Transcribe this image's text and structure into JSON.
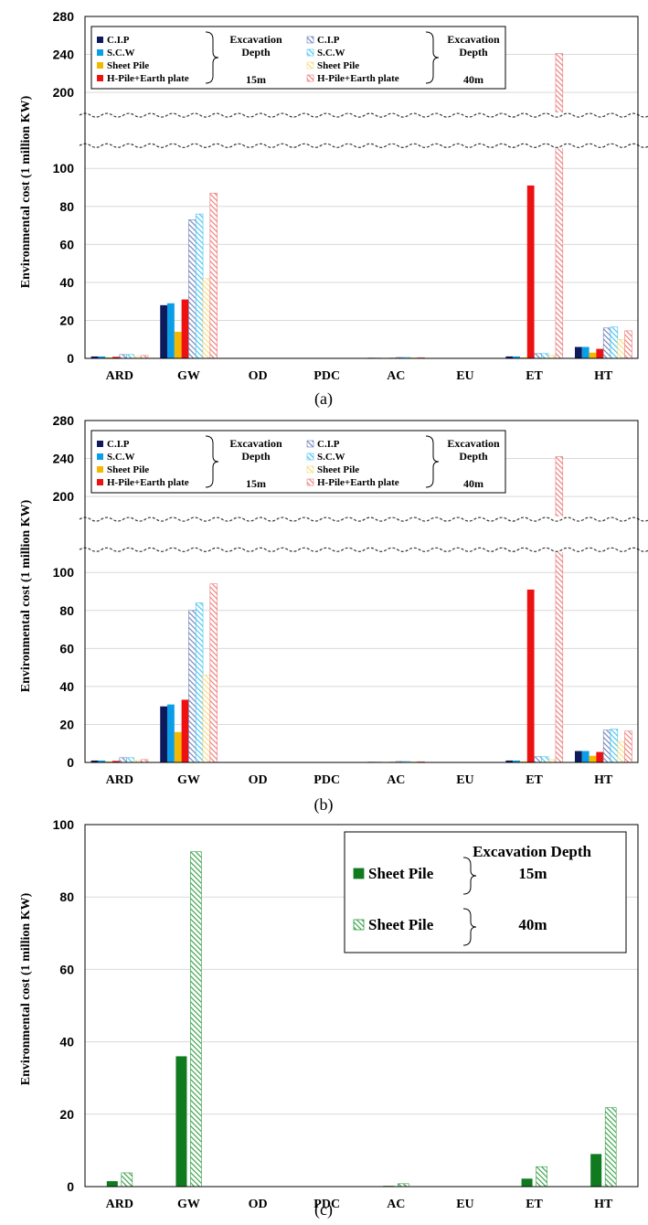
{
  "chart_data": [
    {
      "type": "bar",
      "panel_label": "(a)",
      "ylabel": "Environmental cost  (1 million KW)",
      "categories": [
        "ARD",
        "GW",
        "OD",
        "PDC",
        "AC",
        "EU",
        "ET",
        "HT"
      ],
      "yticks": [
        0,
        20,
        40,
        60,
        80,
        100,
        200,
        240,
        280
      ],
      "axis_break": [
        100,
        200
      ],
      "legend_header": "Excavation Depth",
      "legend_groups": [
        {
          "depth": "15m",
          "header_line1": "Excavation",
          "header_line2": "Depth"
        },
        {
          "depth": "40m",
          "header_line1": "Excavation",
          "header_line2": "Depth"
        }
      ],
      "series": [
        {
          "name": "C.I.P",
          "depth": "15m",
          "color": "#0d1a5c",
          "pattern": "solid",
          "values": [
            1,
            28,
            0,
            0,
            0.3,
            0,
            1,
            6
          ]
        },
        {
          "name": "S.C.W",
          "depth": "15m",
          "color": "#0b9ee8",
          "pattern": "solid",
          "values": [
            1,
            29,
            0,
            0,
            0.3,
            0,
            1,
            6
          ]
        },
        {
          "name": "Sheet Pile",
          "depth": "15m",
          "color": "#f5b800",
          "pattern": "solid",
          "values": [
            0.5,
            14,
            0,
            0,
            0.2,
            0,
            0.5,
            3
          ]
        },
        {
          "name": "H-Pile+Earth plate",
          "depth": "15m",
          "color": "#ee1111",
          "pattern": "solid",
          "values": [
            0.8,
            31,
            0,
            0,
            0.3,
            0,
            91,
            5
          ]
        },
        {
          "name": "C.I.P",
          "depth": "40m",
          "color": "#6f7fb8",
          "pattern": "hatch",
          "values": [
            2,
            73,
            0,
            0,
            0.5,
            0,
            2.5,
            16
          ]
        },
        {
          "name": "S.C.W",
          "depth": "40m",
          "color": "#3fc4f2",
          "pattern": "hatch",
          "values": [
            2,
            76,
            0,
            0,
            0.5,
            0,
            2.5,
            16.5
          ]
        },
        {
          "name": "Sheet Pile",
          "depth": "40m",
          "color": "#f7d97a",
          "pattern": "hatch",
          "values": [
            1,
            42,
            0,
            0,
            0.3,
            0,
            1.5,
            10
          ]
        },
        {
          "name": "H-Pile+Earth plate",
          "depth": "40m",
          "color": "#ee7777",
          "pattern": "hatch",
          "values": [
            1.5,
            87,
            0,
            0,
            0.4,
            0,
            241,
            14.5
          ]
        }
      ]
    },
    {
      "type": "bar",
      "panel_label": "(b)",
      "ylabel": "Environmental cost  (1 million KW)",
      "categories": [
        "ARD",
        "GW",
        "OD",
        "PDC",
        "AC",
        "EU",
        "ET",
        "HT"
      ],
      "yticks": [
        0,
        20,
        40,
        60,
        80,
        100,
        200,
        240,
        280
      ],
      "axis_break": [
        100,
        200
      ],
      "legend_groups": [
        {
          "depth": "15m",
          "header_line1": "Excavation",
          "header_line2": "Depth"
        },
        {
          "depth": "40m",
          "header_line1": "Excavation",
          "header_line2": "Depth"
        }
      ],
      "series": [
        {
          "name": "C.I.P",
          "depth": "15m",
          "color": "#0d1a5c",
          "pattern": "solid",
          "values": [
            1,
            29.5,
            0,
            0,
            0.3,
            0,
            1,
            6
          ]
        },
        {
          "name": "S.C.W",
          "depth": "15m",
          "color": "#0b9ee8",
          "pattern": "solid",
          "values": [
            1,
            30.5,
            0,
            0,
            0.3,
            0,
            1,
            6
          ]
        },
        {
          "name": "Sheet Pile",
          "depth": "15m",
          "color": "#f5b800",
          "pattern": "solid",
          "values": [
            0.5,
            16,
            0,
            0,
            0.2,
            0,
            0.5,
            3.5
          ]
        },
        {
          "name": "H-Pile+Earth plate",
          "depth": "15m",
          "color": "#ee1111",
          "pattern": "solid",
          "values": [
            0.8,
            33,
            0,
            0,
            0.3,
            0,
            91,
            5.5
          ]
        },
        {
          "name": "C.I.P",
          "depth": "40m",
          "color": "#6f7fb8",
          "pattern": "hatch",
          "values": [
            2.5,
            80,
            0,
            0,
            0.5,
            0,
            3,
            17
          ]
        },
        {
          "name": "S.C.W",
          "depth": "40m",
          "color": "#3fc4f2",
          "pattern": "hatch",
          "values": [
            2.5,
            84,
            0,
            0,
            0.5,
            0,
            3,
            17.5
          ]
        },
        {
          "name": "Sheet Pile",
          "depth": "40m",
          "color": "#f7d97a",
          "pattern": "hatch",
          "values": [
            1,
            46,
            0,
            0,
            0.3,
            0,
            1.5,
            11
          ]
        },
        {
          "name": "H-Pile+Earth plate",
          "depth": "40m",
          "color": "#ee7777",
          "pattern": "hatch",
          "values": [
            1.5,
            94,
            0,
            0,
            0.4,
            0,
            242,
            16.5
          ]
        }
      ]
    },
    {
      "type": "bar",
      "panel_label": "(c)",
      "ylabel": "Environmental cost  (1 million KW)",
      "categories": [
        "ARD",
        "GW",
        "OD",
        "PDC",
        "AC",
        "EU",
        "ET",
        "HT"
      ],
      "yticks": [
        0,
        20,
        40,
        60,
        80,
        100
      ],
      "legend_header": "Excavation Depth",
      "series": [
        {
          "name": "Sheet Pile",
          "depth": "15m",
          "color": "#0f7a1e",
          "pattern": "solid",
          "values": [
            1.5,
            36,
            0,
            0,
            0.2,
            0,
            2.2,
            9
          ]
        },
        {
          "name": "Sheet Pile",
          "depth": "40m",
          "color": "#2e9e3f",
          "pattern": "hatch",
          "values": [
            3.8,
            92.5,
            0,
            0,
            0.8,
            0,
            5.5,
            21.8
          ]
        }
      ]
    }
  ]
}
